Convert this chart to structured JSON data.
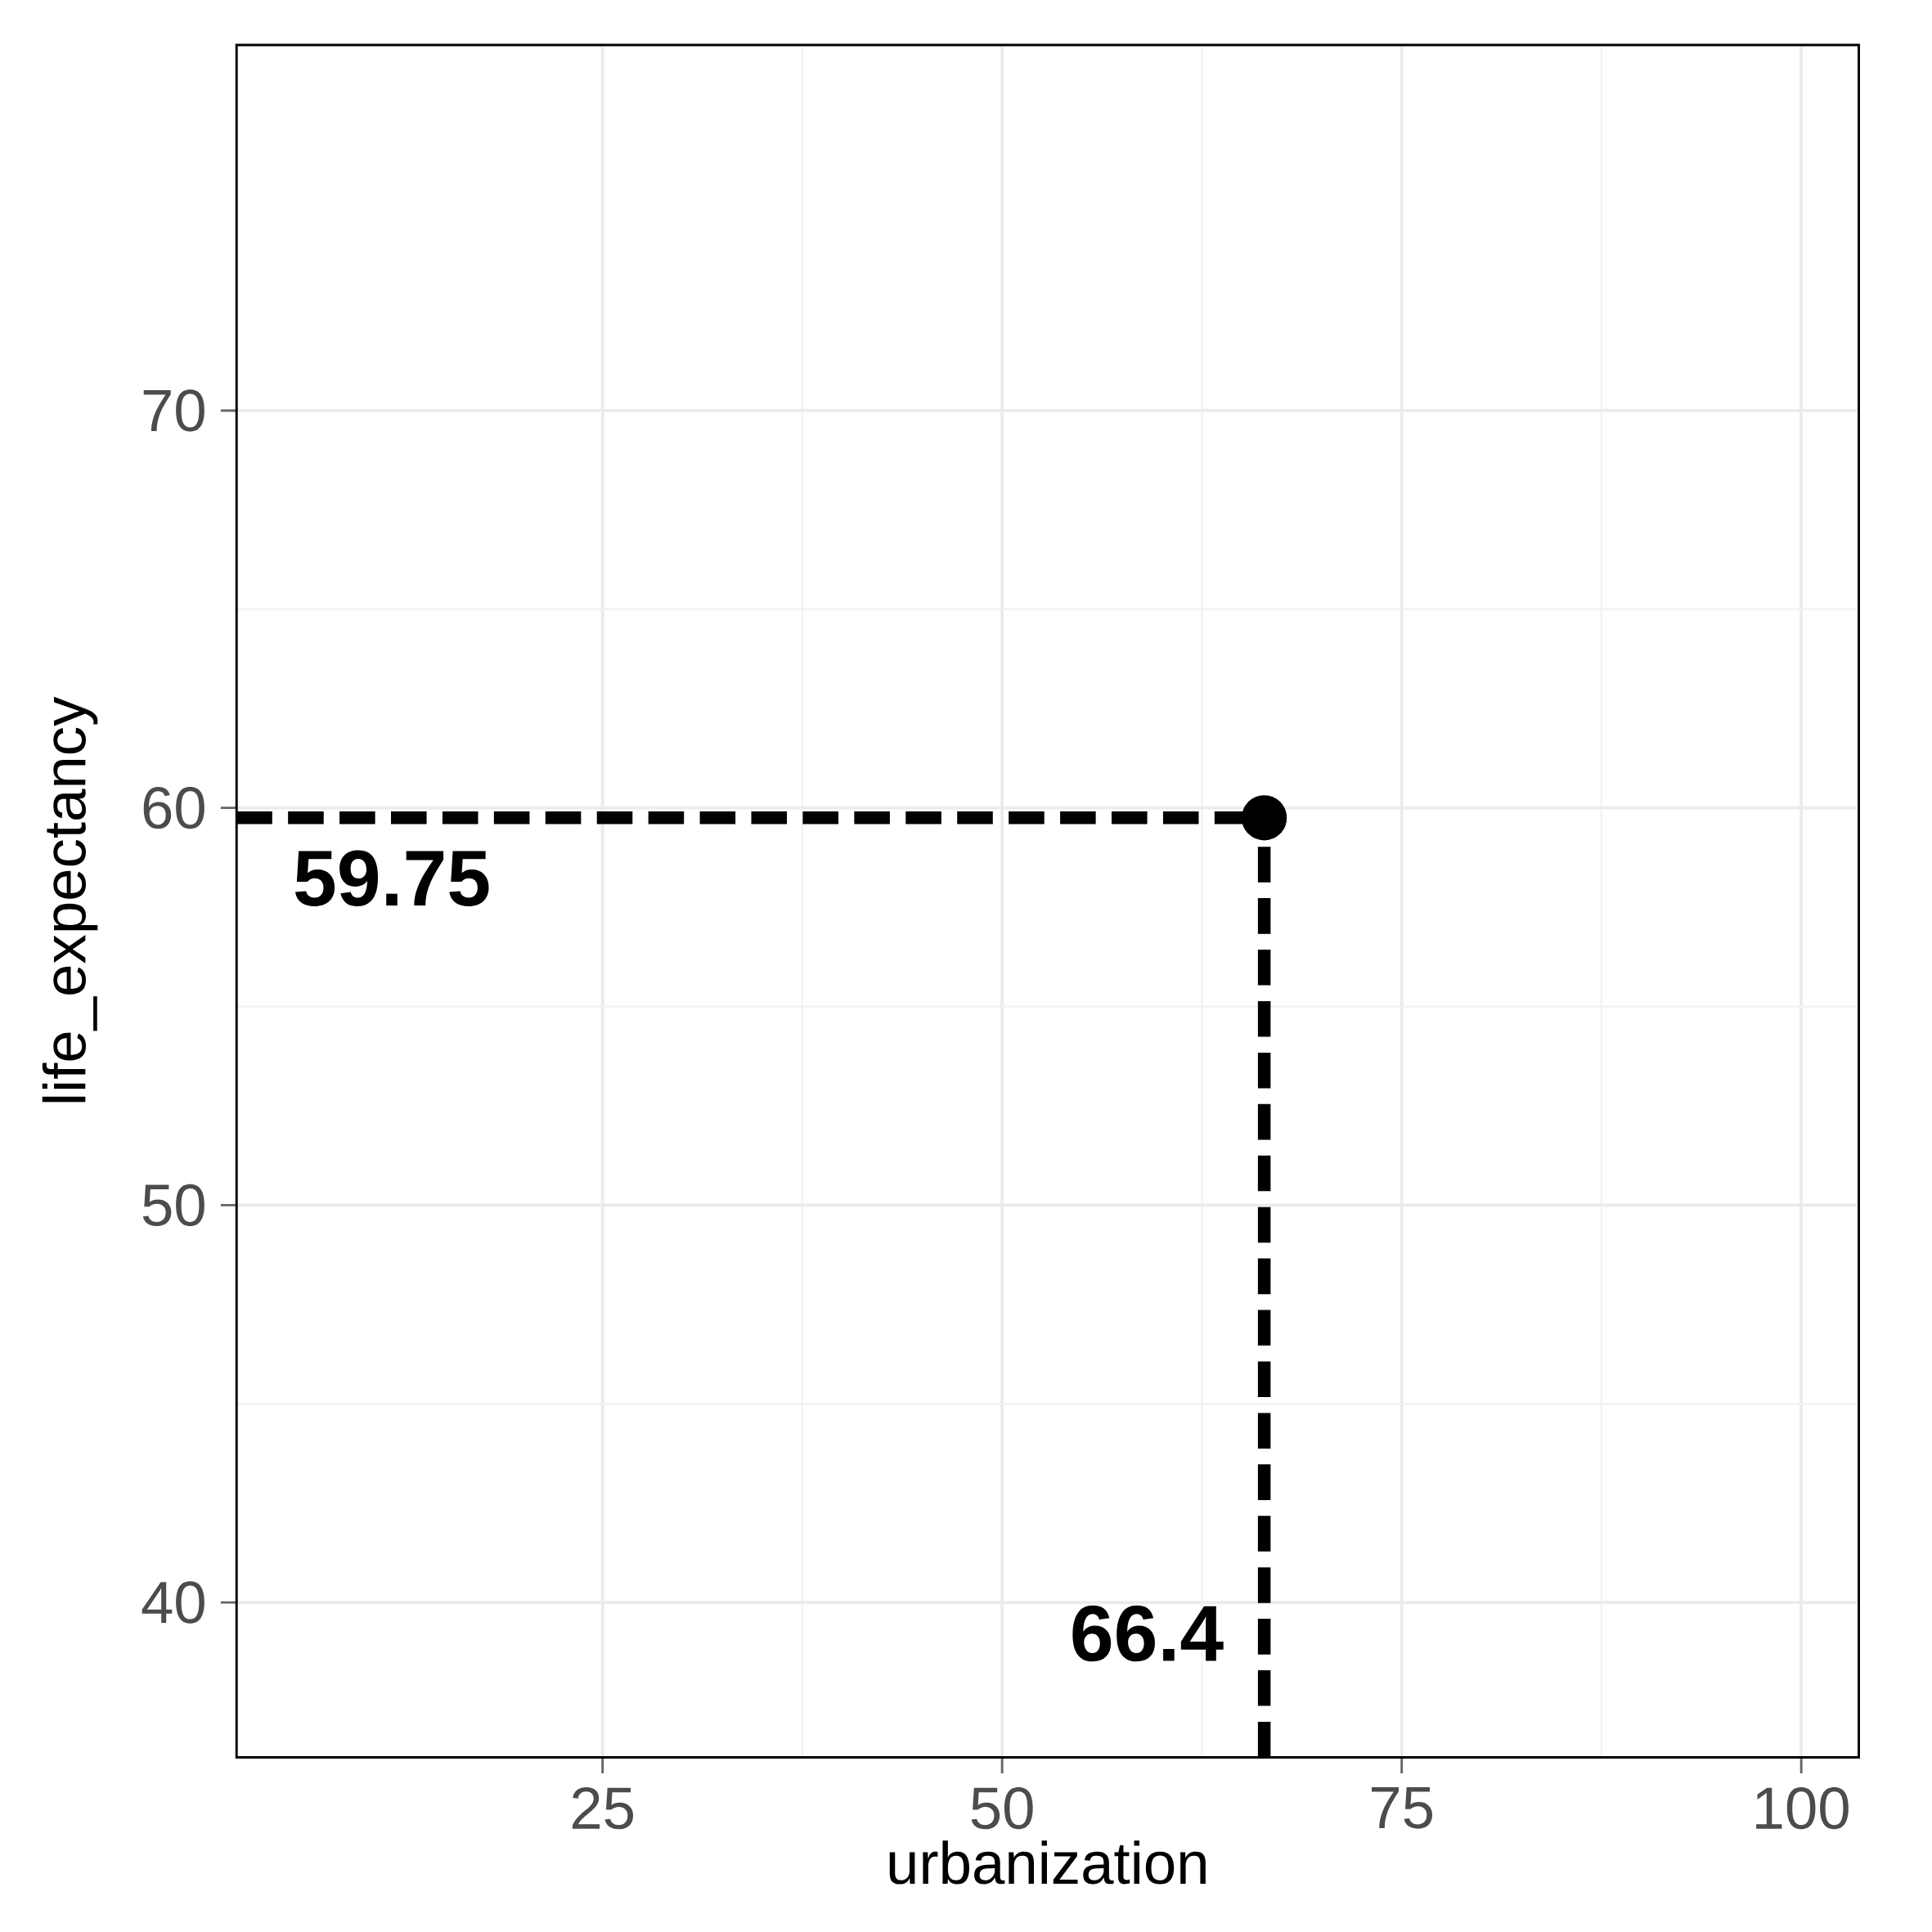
{
  "chart_data": {
    "type": "scatter",
    "xlabel": "urbanization",
    "ylabel": "life_expectancy",
    "x": [
      66.4
    ],
    "values": [
      59.75
    ],
    "color": "#000000",
    "xlim": [
      2.1,
      103.6
    ],
    "ylim": [
      36.1,
      79.2
    ],
    "xticks": [
      25,
      50,
      75,
      100
    ],
    "yticks": [
      40,
      50,
      60,
      70
    ],
    "grid": true,
    "ref_lines": [
      {
        "axis": "y",
        "value": 59.75,
        "label": "59.75",
        "color": "#000000",
        "line_style": "dashed"
      },
      {
        "axis": "x",
        "value": 66.4,
        "label": "66.4",
        "color": "#000000",
        "line_style": "dashed"
      }
    ]
  }
}
